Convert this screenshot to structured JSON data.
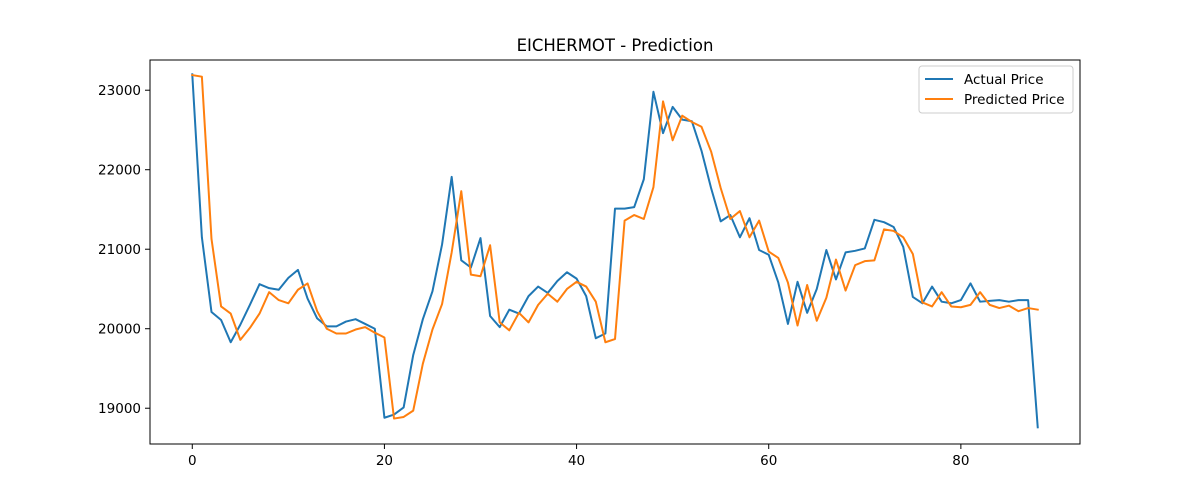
{
  "chart_data": {
    "type": "line",
    "title": "EICHERMOT - Prediction",
    "xlabel": "",
    "ylabel": "",
    "xlim": [
      -4.4,
      92.4
    ],
    "ylim": [
      18550,
      23380
    ],
    "xticks": [
      0,
      20,
      40,
      60,
      80
    ],
    "yticks": [
      19000,
      20000,
      21000,
      22000,
      23000
    ],
    "grid": false,
    "legend_position": "top-right",
    "series": [
      {
        "name": "Actual Price",
        "color": "#1f77b4",
        "x": [
          0,
          1,
          2,
          3,
          4,
          5,
          6,
          7,
          8,
          9,
          10,
          11,
          12,
          13,
          14,
          15,
          16,
          17,
          18,
          19,
          20,
          21,
          22,
          23,
          24,
          25,
          26,
          27,
          28,
          29,
          30,
          31,
          32,
          33,
          34,
          35,
          36,
          37,
          38,
          39,
          40,
          41,
          42,
          43,
          44,
          45,
          46,
          47,
          48,
          49,
          50,
          51,
          52,
          53,
          54,
          55,
          56,
          57,
          58,
          59,
          60,
          61,
          62,
          63,
          64,
          65,
          66,
          67,
          68,
          69,
          70,
          71,
          72,
          73,
          74,
          75,
          76,
          77,
          78,
          79,
          80,
          81,
          82,
          83,
          84,
          85,
          86,
          87,
          88
        ],
        "values": [
          23200,
          21150,
          20210,
          20110,
          19830,
          20050,
          20300,
          20560,
          20510,
          20490,
          20640,
          20740,
          20380,
          20130,
          20030,
          20030,
          20090,
          20120,
          20060,
          20000,
          18880,
          18920,
          19010,
          19670,
          20120,
          20470,
          21060,
          21910,
          20860,
          20770,
          21140,
          20160,
          20020,
          20240,
          20190,
          20410,
          20530,
          20450,
          20600,
          20710,
          20630,
          20410,
          19880,
          19940,
          21510,
          21510,
          21530,
          21880,
          22980,
          22460,
          22790,
          22630,
          22610,
          22240,
          21770,
          21350,
          21430,
          21150,
          21390,
          20990,
          20930,
          20580,
          20060,
          20590,
          20200,
          20500,
          20990,
          20620,
          20960,
          20980,
          21010,
          21370,
          21340,
          21280,
          21030,
          20400,
          20320,
          20530,
          20340,
          20320,
          20360,
          20570,
          20340,
          20350,
          20360,
          20340,
          20360,
          20360,
          18760
        ]
      },
      {
        "name": "Predicted Price",
        "color": "#ff7f0e",
        "x": [
          0,
          1,
          2,
          3,
          4,
          5,
          6,
          7,
          8,
          9,
          10,
          11,
          12,
          13,
          14,
          15,
          16,
          17,
          18,
          19,
          20,
          21,
          22,
          23,
          24,
          25,
          26,
          27,
          28,
          29,
          30,
          31,
          32,
          33,
          34,
          35,
          36,
          37,
          38,
          39,
          40,
          41,
          42,
          43,
          44,
          45,
          46,
          47,
          48,
          49,
          50,
          51,
          52,
          53,
          54,
          55,
          56,
          57,
          58,
          59,
          60,
          61,
          62,
          63,
          64,
          65,
          66,
          67,
          68,
          69,
          70,
          71,
          72,
          73,
          74,
          75,
          76,
          77,
          78,
          79,
          80,
          81,
          82,
          83,
          84,
          85,
          86,
          87,
          88
        ],
        "values": [
          23190,
          23170,
          21130,
          20280,
          20190,
          19860,
          20010,
          20190,
          20460,
          20360,
          20320,
          20490,
          20570,
          20220,
          20000,
          19940,
          19940,
          19990,
          20020,
          19950,
          19890,
          18870,
          18890,
          18970,
          19560,
          19990,
          20310,
          20960,
          21730,
          20680,
          20660,
          21050,
          20080,
          19980,
          20200,
          20080,
          20300,
          20440,
          20340,
          20500,
          20590,
          20530,
          20340,
          19830,
          19870,
          21360,
          21430,
          21380,
          21780,
          22860,
          22370,
          22680,
          22600,
          22540,
          22230,
          21770,
          21380,
          21480,
          21150,
          21360,
          20970,
          20890,
          20580,
          20040,
          20550,
          20100,
          20390,
          20870,
          20480,
          20800,
          20850,
          20860,
          21250,
          21230,
          21150,
          20940,
          20330,
          20280,
          20460,
          20280,
          20270,
          20300,
          20460,
          20300,
          20260,
          20290,
          20220,
          20260,
          20240
        ]
      }
    ]
  }
}
